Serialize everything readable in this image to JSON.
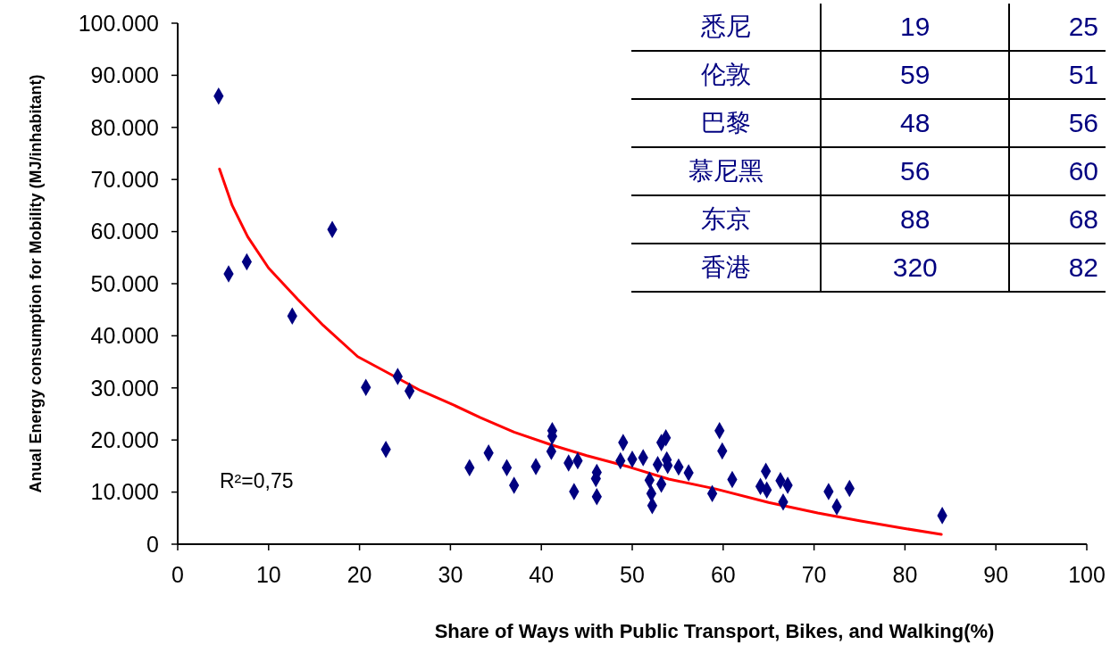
{
  "chart_data": [
    {
      "type": "scatter",
      "xlabel": "Share of Ways with Public Transport, Bikes, and Walking(%)",
      "ylabel": "Anual Energy consumption for Mobility (MJ/inhabitant)",
      "annotations": [
        "R²=0,75"
      ],
      "xlim": [
        0,
        100
      ],
      "xticks": [
        0,
        10,
        20,
        30,
        40,
        50,
        60,
        70,
        80,
        90,
        100
      ],
      "ylim": [
        0,
        100000
      ],
      "yticks": [
        0,
        {
          "value": 10000,
          "label": "10.000"
        },
        {
          "value": 20000,
          "label": "20.000"
        },
        {
          "value": 30000,
          "label": "30.000"
        },
        {
          "value": 40000,
          "label": "40.000"
        },
        {
          "value": 50000,
          "label": "50.000"
        },
        {
          "value": 60000,
          "label": "60.000"
        },
        {
          "value": 70000,
          "label": "70.000"
        },
        {
          "value": 80000,
          "label": "80.000"
        },
        {
          "value": 90000,
          "label": "90.000"
        },
        {
          "value": 100000,
          "label": "100.000"
        }
      ],
      "marker": "diamond",
      "series": [
        {
          "type": "scatter",
          "color": "#000080",
          "x": [
            4.5,
            5.6,
            7.6,
            12.6,
            17.0,
            20.7,
            22.9,
            24.2,
            25.5,
            32.1,
            34.2,
            36.2,
            37.0,
            39.4,
            41.1,
            41.2,
            41.2,
            43.0,
            43.6,
            44.0,
            46.0,
            46.1,
            46.1,
            48.7,
            49.0,
            50.0,
            51.2,
            51.9,
            52.1,
            52.2,
            52.8,
            53.2,
            53.2,
            53.7,
            53.8,
            53.9,
            55.1,
            56.2,
            58.8,
            59.6,
            59.9,
            61.0,
            64.1,
            64.7,
            64.8,
            66.3,
            66.6,
            67.1,
            71.6,
            72.5,
            73.9,
            84.1
          ],
          "values": [
            86000,
            51900,
            54200,
            43800,
            60400,
            30100,
            18200,
            32200,
            29400,
            14700,
            17500,
            14700,
            11300,
            14900,
            17800,
            20700,
            21800,
            15600,
            10100,
            16000,
            12600,
            13800,
            9100,
            16000,
            19500,
            16300,
            16600,
            12300,
            9700,
            7400,
            15300,
            19500,
            11500,
            20400,
            16200,
            15100,
            14800,
            13700,
            9700,
            21800,
            17900,
            12400,
            11100,
            14000,
            10400,
            12200,
            8100,
            11300,
            10100,
            7200,
            10700,
            5500
          ]
        },
        {
          "type": "line",
          "color": "#ff0000",
          "marker": "none",
          "line_style": "solid",
          "x": [
            4.6,
            6,
            7.7,
            10,
            13.2,
            16,
            19.8,
            23,
            26.7,
            30,
            33.3,
            37,
            41.2,
            45,
            49.7,
            54,
            59.2,
            65,
            70.4,
            75,
            80,
            84
          ],
          "values": [
            72000,
            65000,
            59000,
            53000,
            47000,
            42000,
            36000,
            33000,
            29500,
            27000,
            24300,
            21500,
            19000,
            17000,
            14800,
            12500,
            10600,
            8000,
            6000,
            4500,
            3000,
            1900
          ]
        }
      ]
    },
    {
      "type": "other",
      "categories": [
        "悉尼",
        "伦敦",
        "巴黎",
        "慕尼黑",
        "东京",
        "香港"
      ],
      "data_labels": true,
      "series": [
        {
          "values": [
            19,
            59,
            48,
            56,
            88,
            320
          ]
        },
        {
          "values": [
            25,
            51,
            56,
            60,
            68,
            82
          ]
        }
      ]
    }
  ]
}
